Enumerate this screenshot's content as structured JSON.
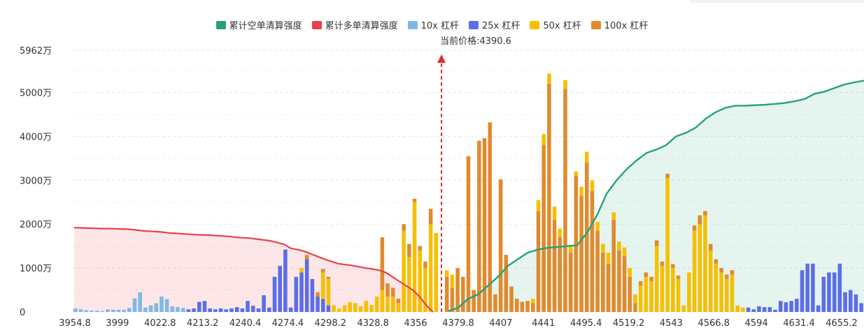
{
  "chart_data": {
    "type": "bar",
    "current_price_label": "当前价格:4390.6",
    "current_price": 4390.6,
    "y_ticks": [
      "0",
      "1000万",
      "2000万",
      "3000万",
      "4000万",
      "5000万",
      "5962万"
    ],
    "y_max": 5962,
    "y_unit": "万",
    "x_ticks": [
      "3954.8",
      "3999",
      "4022.8",
      "4213.2",
      "4240.4",
      "4274.4",
      "4298.2",
      "4328.8",
      "4356",
      "4379.8",
      "4407",
      "4441",
      "4495.4",
      "4519.2",
      "4543",
      "4566.8",
      "4594",
      "4631.4",
      "4655.2"
    ],
    "colors": {
      "short_cum": "#26a17b",
      "long_cum": "#e8404d",
      "lev10": "#7fb8e6",
      "lev25": "#5b6ee8",
      "lev50": "#f5c000",
      "lev100": "#e08a2e"
    },
    "legend": [
      {
        "key": "short_cum",
        "label": "累计空单清算强度",
        "color": "#26a17b"
      },
      {
        "key": "long_cum",
        "label": "累计多单清算强度",
        "color": "#e8404d"
      },
      {
        "key": "lev10",
        "label": "10x 杠杆",
        "color": "#7fb8e6"
      },
      {
        "key": "lev25",
        "label": "25x 杠杆",
        "color": "#5b6ee8"
      },
      {
        "key": "lev50",
        "label": "50x 杠杆",
        "color": "#f5c000"
      },
      {
        "key": "lev100",
        "label": "100x 杠杆",
        "color": "#e08a2e"
      }
    ],
    "bars": [
      {
        "d": "lev10",
        "v": 80
      },
      {
        "d": "lev10",
        "v": 60
      },
      {
        "d": "lev10",
        "v": 40
      },
      {
        "d": "lev10",
        "v": 30
      },
      {
        "d": "lev10",
        "v": 30
      },
      {
        "d": "lev10",
        "v": 20
      },
      {
        "d": "lev10",
        "v": 60
      },
      {
        "d": "lev10",
        "v": 50
      },
      {
        "d": "lev10",
        "v": 50
      },
      {
        "d": "lev10",
        "v": 50
      },
      {
        "d": "lev10",
        "v": 90
      },
      {
        "d": "lev10",
        "v": 310
      },
      {
        "d": "lev10",
        "v": 450
      },
      {
        "d": "lev10",
        "v": 100
      },
      {
        "d": "lev10",
        "v": 150
      },
      {
        "d": "lev10",
        "v": 200
      },
      {
        "d": "lev10",
        "v": 350
      },
      {
        "d": "lev10",
        "v": 290
      },
      {
        "d": "lev10",
        "v": 130
      },
      {
        "d": "lev10",
        "v": 110
      },
      {
        "d": "lev10",
        "v": 90
      },
      {
        "d": "lev25",
        "v": 60
      },
      {
        "d": "lev25",
        "v": 80
      },
      {
        "d": "lev25",
        "v": 230
      },
      {
        "d": "lev25",
        "v": 250
      },
      {
        "d": "lev25",
        "v": 80
      },
      {
        "d": "lev25",
        "v": 60
      },
      {
        "d": "lev25",
        "v": 80
      },
      {
        "d": "lev25",
        "v": 60
      },
      {
        "d": "lev25",
        "v": 80
      },
      {
        "d": "lev25",
        "v": 110
      },
      {
        "d": "lev25",
        "v": 80
      },
      {
        "d": "lev25",
        "v": 250
      },
      {
        "d": "lev25",
        "v": 140
      },
      {
        "d": "lev25",
        "v": 80
      },
      {
        "d": "lev25",
        "v": 380
      },
      {
        "d": "lev25",
        "v": 100
      },
      {
        "d": "lev25",
        "v": 800
      },
      {
        "d": "lev25",
        "v": 1050
      },
      {
        "d": "lev25",
        "v": 1420
      },
      {
        "d": "lev25",
        "v": 100
      },
      {
        "d": "lev25",
        "v": 800
      },
      {
        "d": "lev25",
        "v": 900,
        "s": [
          {
            "k": "lev50",
            "v": 100
          }
        ]
      },
      {
        "d": "lev25",
        "v": 1200,
        "s": [
          {
            "k": "lev100",
            "v": 100
          }
        ]
      },
      {
        "d": "lev25",
        "v": 750
      },
      {
        "d": "lev25",
        "v": 350,
        "s": [
          {
            "k": "lev100",
            "v": 100
          }
        ]
      },
      {
        "d": "lev25",
        "v": 300,
        "s": [
          {
            "k": "lev50",
            "v": 600
          },
          {
            "k": "lev100",
            "v": 80
          }
        ]
      },
      {
        "d": "lev25",
        "v": 150,
        "s": [
          {
            "k": "lev50",
            "v": 600
          },
          {
            "k": "lev100",
            "v": 50
          }
        ]
      },
      {
        "d": "lev50",
        "v": 150
      },
      {
        "d": "lev50",
        "v": 80
      },
      {
        "d": "lev50",
        "v": 150
      },
      {
        "d": "lev50",
        "v": 220
      },
      {
        "d": "lev50",
        "v": 200
      },
      {
        "d": "lev50",
        "v": 130
      },
      {
        "d": "lev50",
        "v": 250
      },
      {
        "d": "lev50",
        "v": 160
      },
      {
        "d": "lev50",
        "v": 350
      },
      {
        "d": "lev50",
        "v": 500,
        "s": [
          {
            "k": "lev100",
            "v": 1200
          }
        ]
      },
      {
        "d": "lev50",
        "v": 350,
        "s": [
          {
            "k": "lev100",
            "v": 300
          }
        ]
      },
      {
        "d": "lev50",
        "v": 350,
        "s": [
          {
            "k": "lev100",
            "v": 200
          }
        ]
      },
      {
        "d": "lev50",
        "v": 200,
        "s": [
          {
            "k": "lev100",
            "v": 100
          }
        ]
      },
      {
        "d": "lev50",
        "v": 1850,
        "s": [
          {
            "k": "lev100",
            "v": 150
          }
        ]
      },
      {
        "d": "lev50",
        "v": 1250,
        "s": [
          {
            "k": "lev100",
            "v": 300
          }
        ]
      },
      {
        "d": "lev50",
        "v": 2500,
        "s": [
          {
            "k": "lev100",
            "v": 80
          }
        ]
      },
      {
        "d": "lev50",
        "v": 1400,
        "s": [
          {
            "k": "lev100",
            "v": 100
          }
        ]
      },
      {
        "d": "lev50",
        "v": 1000,
        "s": [
          {
            "k": "lev100",
            "v": 150
          }
        ]
      },
      {
        "d": "lev50",
        "v": 2000,
        "s": [
          {
            "k": "lev100",
            "v": 350
          }
        ]
      },
      {
        "d": "lev50",
        "v": 1800
      },
      {
        "gap": true
      },
      {
        "d": "lev100",
        "v": 800,
        "s": [
          {
            "k": "lev50",
            "v": 150
          }
        ]
      },
      {
        "d": "lev100",
        "v": 550,
        "s": [
          {
            "k": "lev50",
            "v": 300
          }
        ]
      },
      {
        "d": "lev100",
        "v": 1000
      },
      {
        "d": "lev100",
        "v": 800
      },
      {
        "d": "lev100",
        "v": 3550
      },
      {
        "d": "lev100",
        "v": 500
      },
      {
        "d": "lev100",
        "v": 3900
      },
      {
        "d": "lev100",
        "v": 3960
      },
      {
        "d": "lev100",
        "v": 4320
      },
      {
        "d": "lev100",
        "v": 400
      },
      {
        "d": "lev100",
        "v": 3020
      },
      {
        "d": "lev100",
        "v": 1300
      },
      {
        "d": "lev100",
        "v": 580
      },
      {
        "d": "lev100",
        "v": 300
      },
      {
        "d": "lev100",
        "v": 230
      },
      {
        "d": "lev100",
        "v": 250
      },
      {
        "d": "lev100",
        "v": 200,
        "s": [
          {
            "k": "lev50",
            "v": 100
          }
        ]
      },
      {
        "d": "lev100",
        "v": 2300,
        "s": [
          {
            "k": "lev50",
            "v": 250
          }
        ]
      },
      {
        "d": "lev100",
        "v": 3800,
        "s": [
          {
            "k": "lev50",
            "v": 250
          }
        ]
      },
      {
        "d": "lev100",
        "v": 5200,
        "s": [
          {
            "k": "lev50",
            "v": 230
          }
        ]
      },
      {
        "d": "lev100",
        "v": 2100,
        "s": [
          {
            "k": "lev50",
            "v": 300
          }
        ]
      },
      {
        "d": "lev100",
        "v": 1700,
        "s": [
          {
            "k": "lev50",
            "v": 200
          }
        ]
      },
      {
        "d": "lev100",
        "v": 5080,
        "s": [
          {
            "k": "lev50",
            "v": 200
          }
        ]
      },
      {
        "d": "lev100",
        "v": 1350,
        "s": [
          {
            "k": "lev50",
            "v": 150
          }
        ]
      },
      {
        "d": "lev100",
        "v": 3100,
        "s": [
          {
            "k": "lev50",
            "v": 100
          }
        ]
      },
      {
        "d": "lev100",
        "v": 2650,
        "s": [
          {
            "k": "lev50",
            "v": 200
          }
        ]
      },
      {
        "d": "lev100",
        "v": 3400,
        "s": [
          {
            "k": "lev50",
            "v": 250
          }
        ]
      },
      {
        "d": "lev100",
        "v": 2750,
        "s": [
          {
            "k": "lev50",
            "v": 250
          }
        ]
      },
      {
        "d": "lev100",
        "v": 1850,
        "s": [
          {
            "k": "lev50",
            "v": 200
          }
        ]
      },
      {
        "d": "lev100",
        "v": 1350,
        "s": [
          {
            "k": "lev50",
            "v": 200
          }
        ]
      },
      {
        "d": "lev100",
        "v": 1100,
        "s": [
          {
            "k": "lev50",
            "v": 250
          }
        ]
      },
      {
        "d": "lev100",
        "v": 2100,
        "s": [
          {
            "k": "lev50",
            "v": 170
          }
        ]
      },
      {
        "d": "lev100",
        "v": 1400,
        "s": [
          {
            "k": "lev50",
            "v": 200
          }
        ]
      },
      {
        "d": "lev100",
        "v": 1270,
        "s": [
          {
            "k": "lev50",
            "v": 200
          }
        ]
      },
      {
        "d": "lev100",
        "v": 800,
        "s": [
          {
            "k": "lev50",
            "v": 200
          }
        ]
      },
      {
        "d": "lev100",
        "v": 200,
        "s": [
          {
            "k": "lev50",
            "v": 200
          }
        ]
      },
      {
        "d": "lev50",
        "v": 600,
        "s": [
          {
            "k": "lev100",
            "v": 100
          }
        ]
      },
      {
        "d": "lev50",
        "v": 800,
        "s": [
          {
            "k": "lev100",
            "v": 100
          }
        ]
      },
      {
        "d": "lev50",
        "v": 700,
        "s": [
          {
            "k": "lev100",
            "v": 100
          }
        ]
      },
      {
        "d": "lev50",
        "v": 1500,
        "s": [
          {
            "k": "lev100",
            "v": 130
          }
        ]
      },
      {
        "d": "lev50",
        "v": 1050,
        "s": [
          {
            "k": "lev100",
            "v": 100
          }
        ]
      },
      {
        "d": "lev50",
        "v": 3050,
        "s": [
          {
            "k": "lev100",
            "v": 100
          }
        ]
      },
      {
        "d": "lev50",
        "v": 1000,
        "s": [
          {
            "k": "lev100",
            "v": 90
          }
        ]
      },
      {
        "d": "lev50",
        "v": 750,
        "s": [
          {
            "k": "lev100",
            "v": 80
          }
        ]
      },
      {
        "d": "lev50",
        "v": 150
      },
      {
        "d": "lev50",
        "v": 900
      },
      {
        "d": "lev50",
        "v": 1850,
        "s": [
          {
            "k": "lev100",
            "v": 120
          }
        ]
      },
      {
        "d": "lev50",
        "v": 2000,
        "s": [
          {
            "k": "lev100",
            "v": 200
          }
        ]
      },
      {
        "d": "lev50",
        "v": 2200,
        "s": [
          {
            "k": "lev100",
            "v": 100
          }
        ]
      },
      {
        "d": "lev50",
        "v": 1400,
        "s": [
          {
            "k": "lev100",
            "v": 150
          }
        ]
      },
      {
        "d": "lev50",
        "v": 1100,
        "s": [
          {
            "k": "lev100",
            "v": 100
          }
        ]
      },
      {
        "d": "lev50",
        "v": 900,
        "s": [
          {
            "k": "lev100",
            "v": 100
          }
        ]
      },
      {
        "d": "lev50",
        "v": 750,
        "s": [
          {
            "k": "lev100",
            "v": 100
          }
        ]
      },
      {
        "d": "lev50",
        "v": 850,
        "s": [
          {
            "k": "lev100",
            "v": 100
          }
        ]
      },
      {
        "d": "lev50",
        "v": 150
      },
      {
        "d": "lev50",
        "v": 100
      },
      {
        "d": "lev25",
        "v": 100
      },
      {
        "d": "lev25",
        "v": 60
      },
      {
        "d": "lev25",
        "v": 130
      },
      {
        "d": "lev25",
        "v": 110
      },
      {
        "d": "lev25",
        "v": 110
      },
      {
        "d": "lev25",
        "v": 50
      },
      {
        "d": "lev25",
        "v": 250
      },
      {
        "d": "lev25",
        "v": 220
      },
      {
        "d": "lev25",
        "v": 250
      },
      {
        "d": "lev25",
        "v": 300
      },
      {
        "d": "lev25",
        "v": 950
      },
      {
        "d": "lev25",
        "v": 1100
      },
      {
        "d": "lev25",
        "v": 1100
      },
      {
        "d": "lev25",
        "v": 150
      },
      {
        "d": "lev25",
        "v": 800
      },
      {
        "d": "lev25",
        "v": 900
      },
      {
        "d": "lev25",
        "v": 900
      },
      {
        "d": "lev25",
        "v": 1100
      },
      {
        "d": "lev25",
        "v": 450
      },
      {
        "d": "lev25",
        "v": 500
      },
      {
        "d": "lev25",
        "v": 400
      },
      {
        "d": "lev25",
        "v": 200
      }
    ],
    "long_cum": [
      1920,
      1915,
      1910,
      1905,
      1900,
      1900,
      1895,
      1890,
      1885,
      1870,
      1850,
      1840,
      1830,
      1820,
      1800,
      1790,
      1780,
      1770,
      1760,
      1755,
      1750,
      1740,
      1730,
      1720,
      1700,
      1690,
      1680,
      1660,
      1640,
      1620,
      1580,
      1540,
      1450,
      1420,
      1380,
      1320,
      1260,
      1200,
      1150,
      1100,
      1080,
      1060,
      1030,
      1000,
      980,
      950,
      900,
      800,
      700,
      600,
      500,
      350,
      150,
      0
    ],
    "short_cum": [
      20,
      100,
      300,
      400,
      600,
      800,
      1050,
      1200,
      1350,
      1420,
      1460,
      1480,
      1500,
      1520,
      1800,
      2200,
      2700,
      3000,
      3250,
      3450,
      3620,
      3700,
      3800,
      4000,
      4080,
      4200,
      4400,
      4550,
      4650,
      4700,
      4700,
      4710,
      4720,
      4740,
      4760,
      4800,
      4850,
      4970,
      5020,
      5100,
      5180,
      5230,
      5270
    ]
  }
}
